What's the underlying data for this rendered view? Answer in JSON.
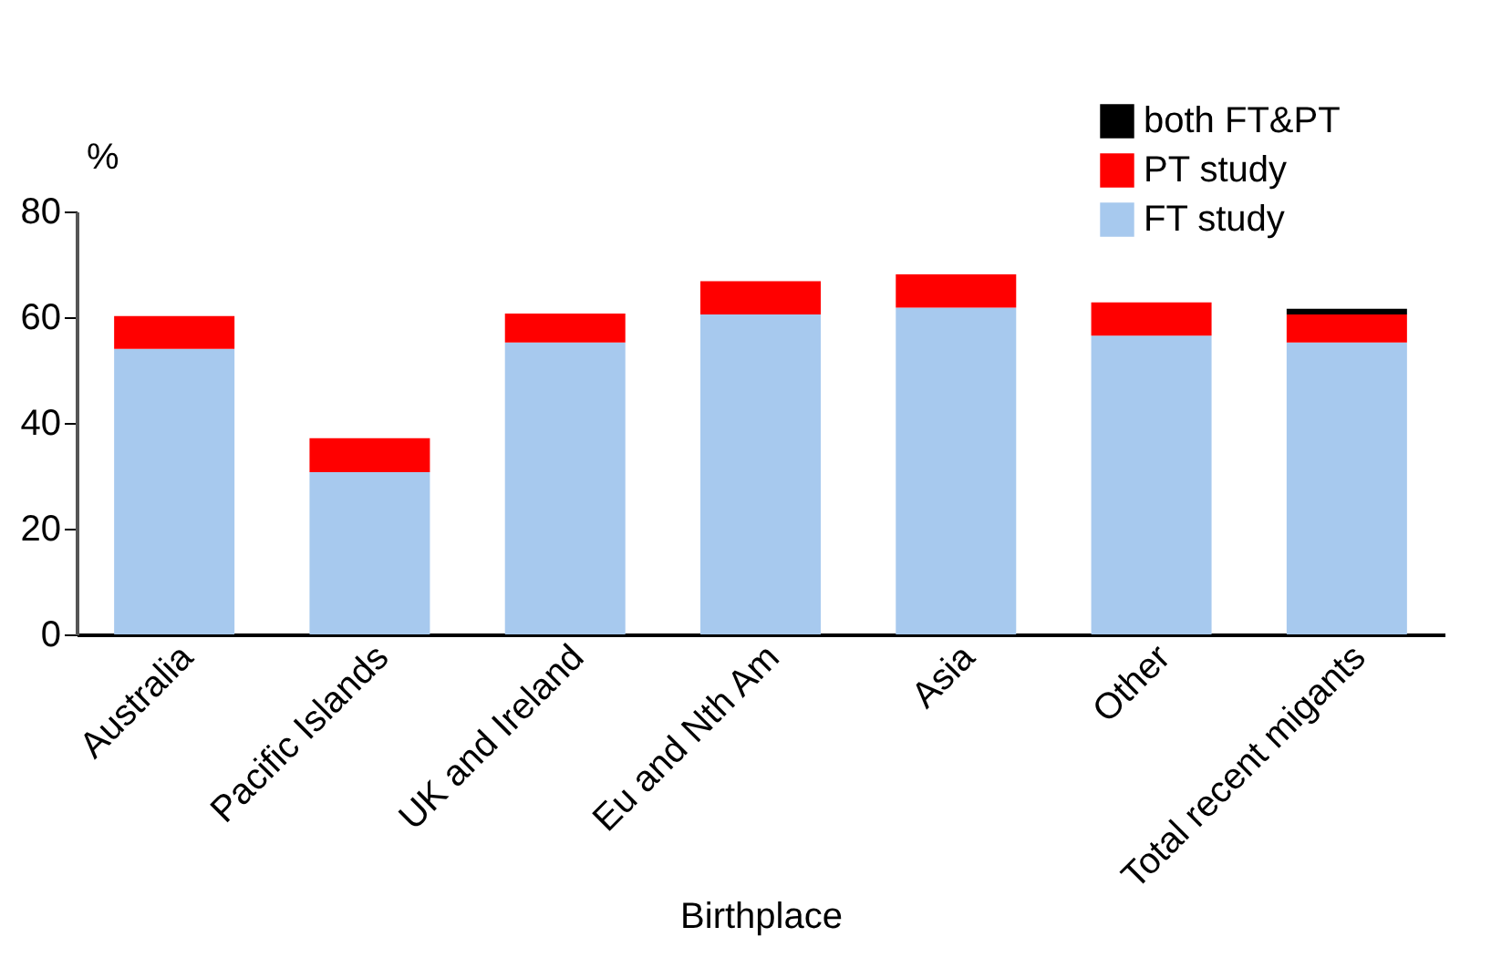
{
  "chart_data": {
    "type": "bar",
    "stacked": true,
    "xlabel": "Birthplace",
    "ylabel": "%",
    "categories": [
      "Australia",
      "Pacific Islands",
      "UK and Ireland",
      "Eu and Nth Am",
      "Asia",
      "Other",
      "Total recent migants"
    ],
    "series": [
      {
        "name": "FT study",
        "color": "#a7c9ee",
        "values": [
          54,
          30.7,
          55.2,
          60.5,
          61.8,
          56.5,
          55.2
        ]
      },
      {
        "name": "PT study",
        "color": "#ff0000",
        "values": [
          6.2,
          6.4,
          5.5,
          6.3,
          6.3,
          6.3,
          5.3
        ]
      },
      {
        "name": "both FT&PT",
        "color": "#000000",
        "values": [
          null,
          null,
          null,
          null,
          null,
          null,
          1.1
        ]
      }
    ],
    "ylim": [
      0,
      80
    ],
    "yticks": [
      0,
      20,
      40,
      60,
      80
    ],
    "grid": false,
    "legend": "top right"
  }
}
